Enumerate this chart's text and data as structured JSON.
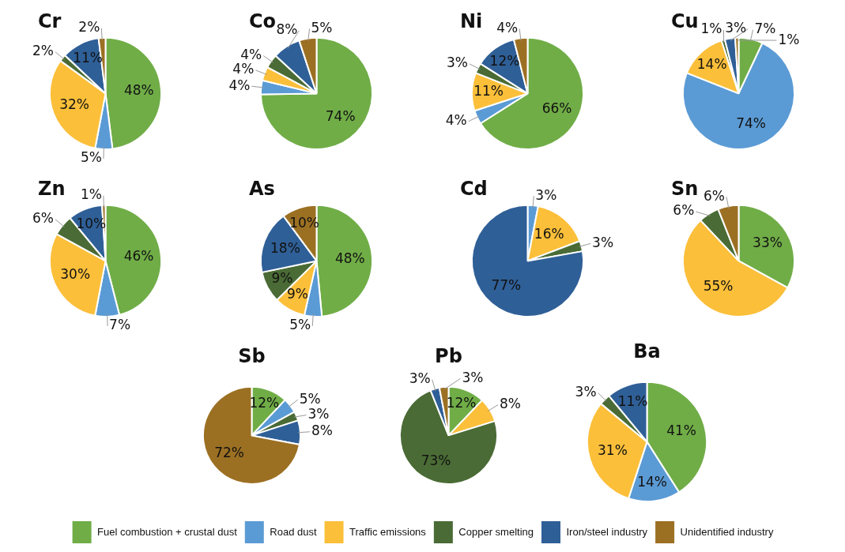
{
  "chart_data": [
    {
      "type": "pie",
      "title": "Cr",
      "values": [
        48,
        5,
        32,
        2,
        11,
        2
      ],
      "value_labels": [
        "48%",
        "5%",
        "32%",
        "2%",
        "11%",
        "2%"
      ],
      "colors": [
        "#70ad47",
        "#5b9bd5",
        "#fbbf3a",
        "#4a6b35",
        "#2f5f97",
        "#9c7023"
      ]
    },
    {
      "type": "pie",
      "title": "Co",
      "values": [
        74,
        4,
        4,
        4,
        8,
        5
      ],
      "value_labels": [
        "74%",
        "4%",
        "4%",
        "4%",
        "8%",
        "5%"
      ],
      "colors": [
        "#70ad47",
        "#5b9bd5",
        "#fbbf3a",
        "#4a6b35",
        "#2f5f97",
        "#9c7023"
      ]
    },
    {
      "type": "pie",
      "title": "Ni",
      "values": [
        66,
        4,
        11,
        3,
        12,
        4
      ],
      "value_labels": [
        "66%",
        "4%",
        "11%",
        "3%",
        "12%",
        "4%"
      ],
      "colors": [
        "#70ad47",
        "#5b9bd5",
        "#fbbf3a",
        "#4a6b35",
        "#2f5f97",
        "#9c7023"
      ]
    },
    {
      "type": "pie",
      "title": "Cu",
      "values": [
        7,
        74,
        14,
        1,
        3,
        1
      ],
      "value_labels": [
        "7%",
        "74%",
        "14%",
        "1%",
        "3%",
        "1%"
      ],
      "colors": [
        "#70ad47",
        "#5b9bd5",
        "#fbbf3a",
        "#4a6b35",
        "#2f5f97",
        "#9c7023"
      ]
    },
    {
      "type": "pie",
      "title": "Zn",
      "values": [
        46,
        7,
        30,
        6,
        10,
        1
      ],
      "value_labels": [
        "46%",
        "7%",
        "30%",
        "6%",
        "10%",
        "1%"
      ],
      "colors": [
        "#70ad47",
        "#5b9bd5",
        "#fbbf3a",
        "#4a6b35",
        "#2f5f97",
        "#9c7023"
      ]
    },
    {
      "type": "pie",
      "title": "As",
      "values": [
        48,
        5,
        9,
        9,
        18,
        10
      ],
      "value_labels": [
        "48%",
        "5%",
        "9%",
        "9%",
        "18%",
        "10%"
      ],
      "colors": [
        "#70ad47",
        "#5b9bd5",
        "#fbbf3a",
        "#4a6b35",
        "#2f5f97",
        "#9c7023"
      ]
    },
    {
      "type": "pie",
      "title": "Cd",
      "values": [
        0,
        3,
        16,
        3,
        77,
        0
      ],
      "value_labels": [
        null,
        "3%",
        "16%",
        "3%",
        "77%",
        null
      ],
      "colors": [
        "#70ad47",
        "#5b9bd5",
        "#fbbf3a",
        "#4a6b35",
        "#2f5f97",
        "#9c7023"
      ]
    },
    {
      "type": "pie",
      "title": "Sn",
      "values": [
        33,
        0,
        55,
        6,
        0,
        6
      ],
      "value_labels": [
        "33%",
        null,
        "55%",
        "6%",
        null,
        "6%"
      ],
      "colors": [
        "#70ad47",
        "#5b9bd5",
        "#fbbf3a",
        "#4a6b35",
        "#2f5f97",
        "#9c7023"
      ]
    },
    {
      "type": "pie",
      "title": "Sb",
      "values": [
        12,
        5,
        0,
        3,
        8,
        72
      ],
      "value_labels": [
        "12%",
        "5%",
        null,
        "3%",
        "8%",
        "72%"
      ],
      "colors": [
        "#70ad47",
        "#5b9bd5",
        "#fbbf3a",
        "#4a6b35",
        "#2f5f97",
        "#9c7023"
      ]
    },
    {
      "type": "pie",
      "title": "Pb",
      "values": [
        12,
        0,
        8,
        73,
        3,
        3
      ],
      "value_labels": [
        "12%",
        null,
        "8%",
        "73%",
        "3%",
        "3%"
      ],
      "colors": [
        "#70ad47",
        "#5b9bd5",
        "#fbbf3a",
        "#4a6b35",
        "#2f5f97",
        "#9c7023"
      ]
    },
    {
      "type": "pie",
      "title": "Ba",
      "categories": [
        "Fuel combustion + crustal dust",
        "Road dust",
        "Traffic emissions",
        "Copper smelting",
        "Iron/steel industry",
        "Unidentified industry"
      ],
      "values": [
        41,
        14,
        31,
        3,
        11,
        0
      ],
      "value_labels": [
        "41%",
        "14%",
        "31%",
        "3%",
        "11%",
        null
      ],
      "colors": [
        "#70ad47",
        "#5b9bd5",
        "#fbbf3a",
        "#4a6b35",
        "#2f5f97",
        "#9c7023"
      ],
      "legend": "bottom"
    }
  ]
}
